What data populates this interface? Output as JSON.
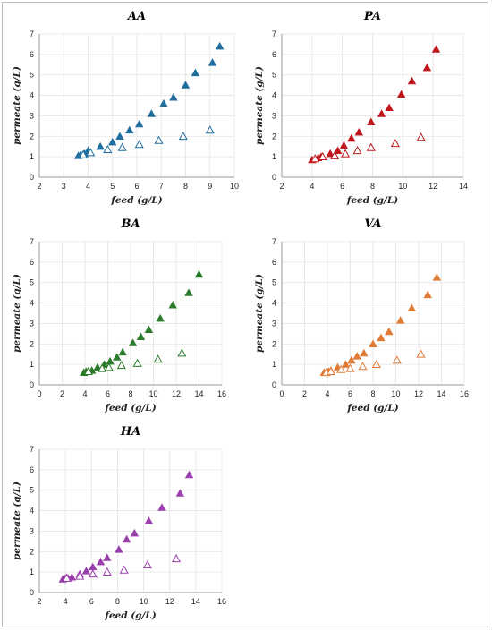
{
  "chart_data": [
    {
      "type": "scatter",
      "title": "AA",
      "xlabel": "feed (g/L)",
      "ylabel": "permeate (g/L)",
      "xlim": [
        2,
        10
      ],
      "ylim": [
        0,
        7
      ],
      "xticks": [
        2,
        3,
        4,
        5,
        6,
        7,
        8,
        9,
        10
      ],
      "yticks": [
        0,
        1,
        2,
        3,
        4,
        5,
        6,
        7
      ],
      "grid": true,
      "color": "#1f6e9e",
      "series": [
        {
          "fill": "filled",
          "points": [
            [
              3.6,
              1.05
            ],
            [
              3.7,
              1.1
            ],
            [
              3.85,
              1.15
            ],
            [
              4.0,
              1.3
            ],
            [
              4.5,
              1.5
            ],
            [
              5.0,
              1.72
            ],
            [
              5.3,
              2.0
            ],
            [
              5.7,
              2.3
            ],
            [
              6.1,
              2.6
            ],
            [
              6.6,
              3.1
            ],
            [
              7.1,
              3.6
            ],
            [
              7.5,
              3.9
            ],
            [
              8.0,
              4.5
            ],
            [
              8.4,
              5.1
            ],
            [
              9.1,
              5.6
            ],
            [
              9.4,
              6.4
            ]
          ]
        },
        {
          "fill": "hollow",
          "points": [
            [
              3.8,
              1.1
            ],
            [
              4.1,
              1.2
            ],
            [
              4.8,
              1.35
            ],
            [
              5.4,
              1.45
            ],
            [
              6.1,
              1.6
            ],
            [
              6.9,
              1.8
            ],
            [
              7.9,
              2.0
            ],
            [
              9.0,
              2.3
            ]
          ]
        }
      ]
    },
    {
      "type": "scatter",
      "title": "PA",
      "xlabel": "feed (g/L)",
      "ylabel": "permeate (g/L)",
      "xlim": [
        2,
        14
      ],
      "ylim": [
        0,
        7
      ],
      "xticks": [
        2,
        4,
        6,
        8,
        10,
        12,
        14
      ],
      "yticks": [
        0,
        1,
        2,
        3,
        4,
        5,
        6,
        7
      ],
      "grid": true,
      "color": "#c0161c",
      "series": [
        {
          "fill": "filled",
          "points": [
            [
              4.0,
              0.85
            ],
            [
              4.2,
              0.9
            ],
            [
              4.4,
              0.95
            ],
            [
              4.6,
              1.0
            ],
            [
              5.2,
              1.15
            ],
            [
              5.7,
              1.3
            ],
            [
              6.1,
              1.55
            ],
            [
              6.6,
              1.9
            ],
            [
              7.1,
              2.2
            ],
            [
              7.9,
              2.7
            ],
            [
              8.6,
              3.1
            ],
            [
              9.1,
              3.4
            ],
            [
              9.9,
              4.05
            ],
            [
              10.6,
              4.7
            ],
            [
              11.6,
              5.35
            ],
            [
              12.2,
              6.25
            ]
          ]
        },
        {
          "fill": "hollow",
          "points": [
            [
              4.2,
              0.9
            ],
            [
              4.7,
              1.0
            ],
            [
              5.5,
              1.05
            ],
            [
              6.2,
              1.15
            ],
            [
              7.0,
              1.3
            ],
            [
              7.9,
              1.45
            ],
            [
              9.5,
              1.65
            ],
            [
              11.2,
              1.95
            ]
          ]
        }
      ]
    },
    {
      "type": "scatter",
      "title": "BA",
      "xlabel": "feed (g/L)",
      "ylabel": "permeate (g/L)",
      "xlim": [
        0,
        16
      ],
      "ylim": [
        0,
        7
      ],
      "xticks": [
        0,
        2,
        4,
        6,
        8,
        10,
        12,
        14,
        16
      ],
      "yticks": [
        0,
        1,
        2,
        3,
        4,
        5,
        6,
        7
      ],
      "grid": true,
      "color": "#2b7a2b",
      "series": [
        {
          "fill": "filled",
          "points": [
            [
              3.9,
              0.6
            ],
            [
              4.1,
              0.65
            ],
            [
              4.3,
              0.65
            ],
            [
              4.6,
              0.7
            ],
            [
              5.1,
              0.85
            ],
            [
              5.7,
              1.0
            ],
            [
              6.2,
              1.15
            ],
            [
              6.8,
              1.35
            ],
            [
              7.3,
              1.6
            ],
            [
              8.2,
              2.05
            ],
            [
              8.9,
              2.35
            ],
            [
              9.6,
              2.7
            ],
            [
              10.6,
              3.25
            ],
            [
              11.7,
              3.9
            ],
            [
              13.1,
              4.5
            ],
            [
              14.0,
              5.4
            ]
          ]
        },
        {
          "fill": "hollow",
          "points": [
            [
              4.3,
              0.65
            ],
            [
              5.5,
              0.8
            ],
            [
              6.1,
              0.85
            ],
            [
              7.2,
              0.95
            ],
            [
              8.6,
              1.05
            ],
            [
              10.4,
              1.25
            ],
            [
              12.5,
              1.55
            ]
          ]
        }
      ]
    },
    {
      "type": "scatter",
      "title": "VA",
      "xlabel": "feed (g/L)",
      "ylabel": "permeate (g/L)",
      "xlim": [
        0,
        16
      ],
      "ylim": [
        0,
        7
      ],
      "xticks": [
        0,
        2,
        4,
        6,
        8,
        10,
        12,
        14,
        16
      ],
      "yticks": [
        0,
        1,
        2,
        3,
        4,
        5,
        6,
        7
      ],
      "grid": true,
      "color": "#e07b36",
      "series": [
        {
          "fill": "filled",
          "points": [
            [
              3.7,
              0.6
            ],
            [
              3.9,
              0.6
            ],
            [
              4.1,
              0.65
            ],
            [
              4.3,
              0.7
            ],
            [
              4.9,
              0.85
            ],
            [
              5.6,
              1.0
            ],
            [
              6.1,
              1.2
            ],
            [
              6.6,
              1.4
            ],
            [
              7.2,
              1.55
            ],
            [
              8.0,
              2.0
            ],
            [
              8.7,
              2.3
            ],
            [
              9.4,
              2.6
            ],
            [
              10.4,
              3.15
            ],
            [
              11.4,
              3.75
            ],
            [
              12.8,
              4.4
            ],
            [
              13.6,
              5.25
            ]
          ]
        },
        {
          "fill": "hollow",
          "points": [
            [
              3.9,
              0.6
            ],
            [
              4.3,
              0.65
            ],
            [
              5.2,
              0.75
            ],
            [
              6.0,
              0.8
            ],
            [
              7.1,
              0.9
            ],
            [
              8.3,
              1.0
            ],
            [
              10.1,
              1.2
            ],
            [
              12.2,
              1.5
            ]
          ]
        }
      ]
    },
    {
      "type": "scatter",
      "title": "HA",
      "xlabel": "feed (g/L)",
      "ylabel": "permeate (g/L)",
      "xlim": [
        2,
        16
      ],
      "ylim": [
        0,
        7
      ],
      "xticks": [
        2,
        4,
        6,
        8,
        10,
        12,
        14,
        16
      ],
      "yticks": [
        0,
        1,
        2,
        3,
        4,
        5,
        6,
        7
      ],
      "grid": true,
      "color": "#9b3fae",
      "series": [
        {
          "fill": "filled",
          "points": [
            [
              3.8,
              0.65
            ],
            [
              4.0,
              0.7
            ],
            [
              4.2,
              0.7
            ],
            [
              4.5,
              0.75
            ],
            [
              5.1,
              0.9
            ],
            [
              5.6,
              1.05
            ],
            [
              6.1,
              1.25
            ],
            [
              6.7,
              1.5
            ],
            [
              7.2,
              1.7
            ],
            [
              8.1,
              2.1
            ],
            [
              8.7,
              2.6
            ],
            [
              9.3,
              2.9
            ],
            [
              10.4,
              3.5
            ],
            [
              11.4,
              4.15
            ],
            [
              12.8,
              4.85
            ],
            [
              13.5,
              5.75
            ]
          ]
        },
        {
          "fill": "hollow",
          "points": [
            [
              4.1,
              0.7
            ],
            [
              5.1,
              0.8
            ],
            [
              6.1,
              0.9
            ],
            [
              7.2,
              1.0
            ],
            [
              8.5,
              1.1
            ],
            [
              10.3,
              1.35
            ],
            [
              12.5,
              1.65
            ]
          ]
        }
      ]
    }
  ]
}
